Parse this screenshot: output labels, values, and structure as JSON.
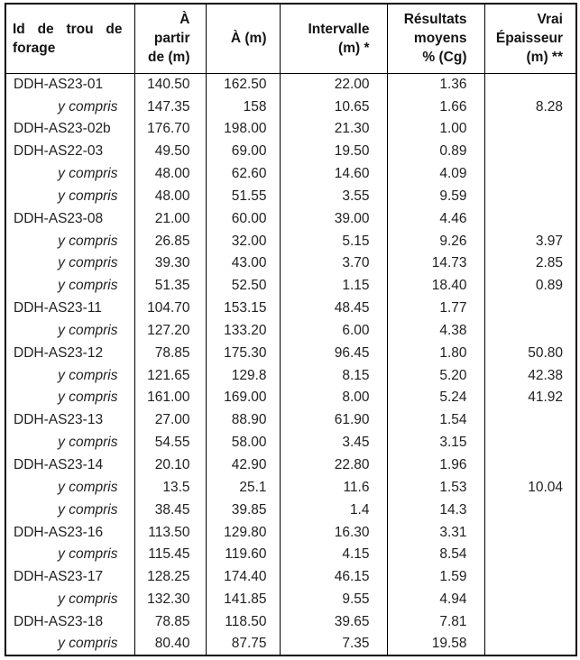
{
  "table": {
    "headers": [
      {
        "label": "Id de trou de forage"
      },
      {
        "label": "À\npartir\nde (m)"
      },
      {
        "label": "À (m)"
      },
      {
        "label": "Intervalle\n(m) *"
      },
      {
        "label": "Résultats\nmoyens\n% (Cg)"
      },
      {
        "label": "Vrai\nÉpaisseur\n(m) **"
      }
    ],
    "sub_row_label": "y compris",
    "rows": [
      {
        "sub": false,
        "cells": [
          "DDH-AS23-01",
          "140.50",
          "162.50",
          "22.00",
          "1.36",
          ""
        ]
      },
      {
        "sub": true,
        "cells": [
          "y compris",
          "147.35",
          "158",
          "10.65",
          "1.66",
          "8.28"
        ]
      },
      {
        "sub": false,
        "cells": [
          "DDH-AS23-02b",
          "176.70",
          "198.00",
          "21.30",
          "1.00",
          ""
        ]
      },
      {
        "sub": false,
        "cells": [
          "DDH-AS22-03",
          "49.50",
          "69.00",
          "19.50",
          "0.89",
          ""
        ]
      },
      {
        "sub": true,
        "cells": [
          "y compris",
          "48.00",
          "62.60",
          "14.60",
          "4.09",
          ""
        ]
      },
      {
        "sub": true,
        "cells": [
          "y compris",
          "48.00",
          "51.55",
          "3.55",
          "9.59",
          ""
        ]
      },
      {
        "sub": false,
        "cells": [
          "DDH-AS23-08",
          "21.00",
          "60.00",
          "39.00",
          "4.46",
          ""
        ]
      },
      {
        "sub": true,
        "cells": [
          "y compris",
          "26.85",
          "32.00",
          "5.15",
          "9.26",
          "3.97"
        ]
      },
      {
        "sub": true,
        "cells": [
          "y compris",
          "39.30",
          "43.00",
          "3.70",
          "14.73",
          "2.85"
        ]
      },
      {
        "sub": true,
        "cells": [
          "y compris",
          "51.35",
          "52.50",
          "1.15",
          "18.40",
          "0.89"
        ]
      },
      {
        "sub": false,
        "cells": [
          "DDH-AS23-11",
          "104.70",
          "153.15",
          "48.45",
          "1.77",
          ""
        ]
      },
      {
        "sub": true,
        "cells": [
          "y compris",
          "127.20",
          "133.20",
          "6.00",
          "4.38",
          ""
        ]
      },
      {
        "sub": false,
        "cells": [
          "DDH-AS23-12",
          "78.85",
          "175.30",
          "96.45",
          "1.80",
          "50.80"
        ]
      },
      {
        "sub": true,
        "cells": [
          "y compris",
          "121.65",
          "129.8",
          "8.15",
          "5.20",
          "42.38"
        ]
      },
      {
        "sub": true,
        "cells": [
          "y compris",
          "161.00",
          "169.00",
          "8.00",
          "5.24",
          "41.92"
        ]
      },
      {
        "sub": false,
        "cells": [
          "DDH-AS23-13",
          "27.00",
          "88.90",
          "61.90",
          "1.54",
          ""
        ]
      },
      {
        "sub": true,
        "cells": [
          "y compris",
          "54.55",
          "58.00",
          "3.45",
          "3.15",
          ""
        ]
      },
      {
        "sub": false,
        "cells": [
          "DDH-AS23-14",
          "20.10",
          "42.90",
          "22.80",
          "1.96",
          ""
        ]
      },
      {
        "sub": true,
        "cells": [
          "y compris",
          "13.5",
          "25.1",
          "11.6",
          "1.53",
          "10.04"
        ]
      },
      {
        "sub": true,
        "cells": [
          "y compris",
          "38.45",
          "39.85",
          "1.4",
          "14.3",
          ""
        ]
      },
      {
        "sub": false,
        "cells": [
          "DDH-AS23-16",
          "113.50",
          "129.80",
          "16.30",
          "3.31",
          ""
        ]
      },
      {
        "sub": true,
        "cells": [
          "y compris",
          "115.45",
          "119.60",
          "4.15",
          "8.54",
          ""
        ]
      },
      {
        "sub": false,
        "cells": [
          "DDH-AS23-17",
          "128.25",
          "174.40",
          "46.15",
          "1.59",
          ""
        ]
      },
      {
        "sub": true,
        "cells": [
          "y compris",
          "132.30",
          "141.85",
          "9.55",
          "4.94",
          ""
        ]
      },
      {
        "sub": false,
        "cells": [
          "DDH-AS23-18",
          "78.85",
          "118.50",
          "39.65",
          "7.81",
          ""
        ]
      },
      {
        "sub": true,
        "cells": [
          "y compris",
          "80.40",
          "87.75",
          "7.35",
          "19.58",
          ""
        ]
      }
    ]
  }
}
